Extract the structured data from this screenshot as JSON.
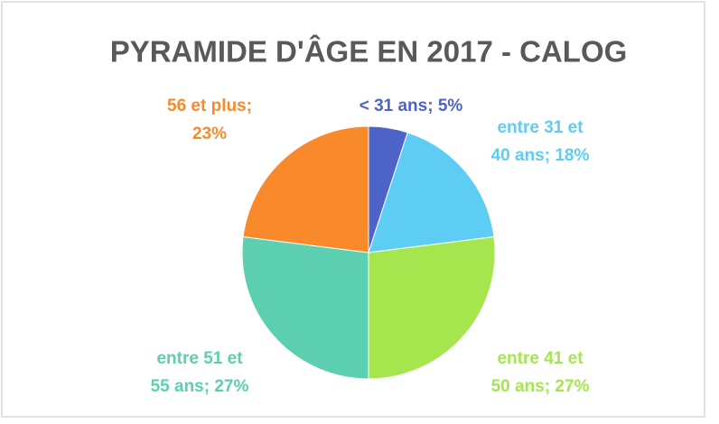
{
  "chart_data": {
    "type": "pie",
    "title": "PYRAMIDE D'ÂGE EN 2017 - CALOG",
    "labels": [
      [
        "< 31 ans; 5%"
      ],
      [
        "entre 31 et",
        "40 ans; 18%"
      ],
      [
        "entre 41 et",
        "50 ans; 27%"
      ],
      [
        "entre 51 et",
        "55 ans; 27%"
      ],
      [
        "56 et plus;",
        "23%"
      ]
    ],
    "values": [
      5,
      18,
      27,
      27,
      23
    ],
    "colors": [
      "#4e63c8",
      "#5ecdf4",
      "#a5e64f",
      "#5dcfb1",
      "#f98a2c"
    ]
  }
}
